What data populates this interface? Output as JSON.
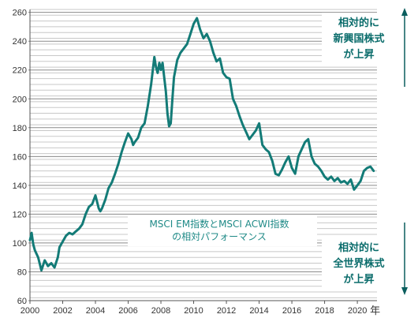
{
  "chart_data": {
    "type": "line",
    "xlabel": "",
    "xlabel_suffix": "年",
    "ylabel": "",
    "x_ticks": [
      "2000",
      "2002",
      "2004",
      "2006",
      "2008",
      "2010",
      "2012",
      "2014",
      "2016",
      "2018",
      "2020"
    ],
    "y_ticks": [
      "60",
      "80",
      "100",
      "120",
      "140",
      "160",
      "180",
      "200",
      "220",
      "240",
      "260"
    ],
    "xlim": [
      2000,
      2021.2
    ],
    "ylim": [
      60,
      262
    ],
    "grid": "horizontal",
    "annotation": {
      "line1": "MSCI EM指数とMSCI ACWI指数",
      "line2": "の相対パフォーマンス"
    },
    "top_note": [
      "相対的に",
      "新興国株式",
      "が上昇"
    ],
    "bottom_note": [
      "相対的に",
      "全世界株式",
      "が上昇"
    ],
    "colors": {
      "line": "#137b77",
      "arrow": "#0a5e5e",
      "grid": "#c8c8c8",
      "note": "#0a6c6b"
    },
    "series": [
      {
        "x": [
          2000.0,
          2000.1,
          2000.2,
          2000.3,
          2000.5,
          2000.7,
          2000.9,
          2001.0,
          2001.1,
          2001.3,
          2001.5,
          2001.7,
          2001.8,
          2002.0,
          2002.2,
          2002.4,
          2002.6,
          2002.8,
          2003.0,
          2003.2,
          2003.4,
          2003.6,
          2003.8,
          2004.0,
          2004.2,
          2004.3,
          2004.4,
          2004.6,
          2004.8,
          2005.0,
          2005.2,
          2005.4,
          2005.6,
          2005.8,
          2006.0,
          2006.2,
          2006.3,
          2006.4,
          2006.6,
          2006.8,
          2007.0,
          2007.2,
          2007.4,
          2007.6,
          2007.7,
          2007.8,
          2007.9,
          2008.0,
          2008.1,
          2008.2,
          2008.3,
          2008.4,
          2008.5,
          2008.6,
          2008.7,
          2008.8,
          2009.0,
          2009.2,
          2009.4,
          2009.6,
          2009.8,
          2010.0,
          2010.2,
          2010.4,
          2010.6,
          2010.8,
          2011.0,
          2011.2,
          2011.4,
          2011.6,
          2011.8,
          2012.0,
          2012.2,
          2012.4,
          2012.6,
          2012.8,
          2013.0,
          2013.2,
          2013.4,
          2013.6,
          2013.8,
          2014.0,
          2014.2,
          2014.4,
          2014.6,
          2014.8,
          2015.0,
          2015.2,
          2015.4,
          2015.6,
          2015.8,
          2016.0,
          2016.2,
          2016.4,
          2016.6,
          2016.8,
          2017.0,
          2017.2,
          2017.4,
          2017.6,
          2017.8,
          2018.0,
          2018.2,
          2018.4,
          2018.6,
          2018.8,
          2019.0,
          2019.2,
          2019.4,
          2019.6,
          2019.8,
          2020.0,
          2020.2,
          2020.4,
          2020.6,
          2020.8,
          2021.0
        ],
        "values": [
          102,
          107,
          99,
          95,
          90,
          81,
          88,
          86,
          84,
          86,
          83,
          90,
          97,
          101,
          105,
          107,
          106,
          108,
          110,
          113,
          120,
          125,
          127,
          133,
          124,
          122,
          124,
          130,
          138,
          142,
          148,
          155,
          163,
          170,
          176,
          172,
          168,
          170,
          173,
          180,
          183,
          195,
          210,
          229,
          222,
          218,
          225,
          220,
          225,
          215,
          205,
          190,
          181,
          183,
          200,
          215,
          227,
          232,
          235,
          238,
          245,
          252,
          256,
          248,
          242,
          245,
          240,
          232,
          226,
          228,
          218,
          215,
          214,
          200,
          195,
          188,
          182,
          177,
          172,
          175,
          178,
          183,
          168,
          165,
          163,
          157,
          148,
          147,
          151,
          156,
          160,
          152,
          148,
          160,
          165,
          170,
          172,
          160,
          155,
          153,
          150,
          146,
          144,
          146,
          143,
          145,
          142,
          143,
          141,
          144,
          137,
          140,
          143,
          150,
          152,
          153,
          150
        ]
      }
    ]
  }
}
